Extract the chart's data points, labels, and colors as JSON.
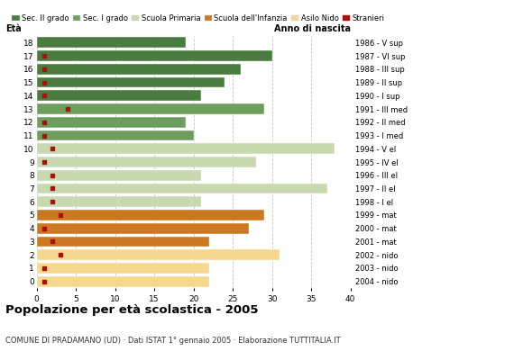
{
  "ages": [
    18,
    17,
    16,
    15,
    14,
    13,
    12,
    11,
    10,
    9,
    8,
    7,
    6,
    5,
    4,
    3,
    2,
    1,
    0
  ],
  "years": [
    "1986 - V sup",
    "1987 - VI sup",
    "1988 - III sup",
    "1989 - II sup",
    "1990 - I sup",
    "1991 - III med",
    "1992 - II med",
    "1993 - I med",
    "1994 - V el",
    "1995 - IV el",
    "1996 - III el",
    "1997 - II el",
    "1998 - I el",
    "1999 - mat",
    "2000 - mat",
    "2001 - mat",
    "2002 - nido",
    "2003 - nido",
    "2004 - nido"
  ],
  "values": [
    19,
    30,
    26,
    24,
    21,
    29,
    19,
    20,
    38,
    28,
    21,
    37,
    21,
    29,
    27,
    22,
    31,
    22,
    22
  ],
  "stranieri": [
    0,
    1,
    1,
    1,
    1,
    4,
    1,
    1,
    2,
    1,
    2,
    2,
    2,
    3,
    1,
    2,
    3,
    1,
    1
  ],
  "categories": {
    "sec2": [
      18,
      17,
      16,
      15,
      14
    ],
    "sec1": [
      13,
      12,
      11
    ],
    "primaria": [
      10,
      9,
      8,
      7,
      6
    ],
    "infanzia": [
      5,
      4,
      3
    ],
    "nido": [
      2,
      1,
      0
    ]
  },
  "colors": {
    "sec2": "#4a7c3f",
    "sec1": "#6e9e5e",
    "primaria": "#c8d9b0",
    "infanzia": "#cc7722",
    "nido": "#f5d78e",
    "stranieri": "#aa1111"
  },
  "legend_labels": [
    "Sec. II grado",
    "Sec. I grado",
    "Scuola Primaria",
    "Scuola dell'Infanzia",
    "Asilo Nido",
    "Stranieri"
  ],
  "title": "Popolazione per età scolastica - 2005",
  "subtitle": "COMUNE DI PRADAMANO (UD) · Dati ISTAT 1° gennaio 2005 · Elaborazione TUTTITALIA.IT",
  "xlabel_eta": "Età",
  "xlabel_anno": "Anno di nascita",
  "xlim": [
    0,
    40
  ],
  "xticks": [
    0,
    5,
    10,
    15,
    20,
    25,
    30,
    35,
    40
  ],
  "background_color": "#ffffff"
}
